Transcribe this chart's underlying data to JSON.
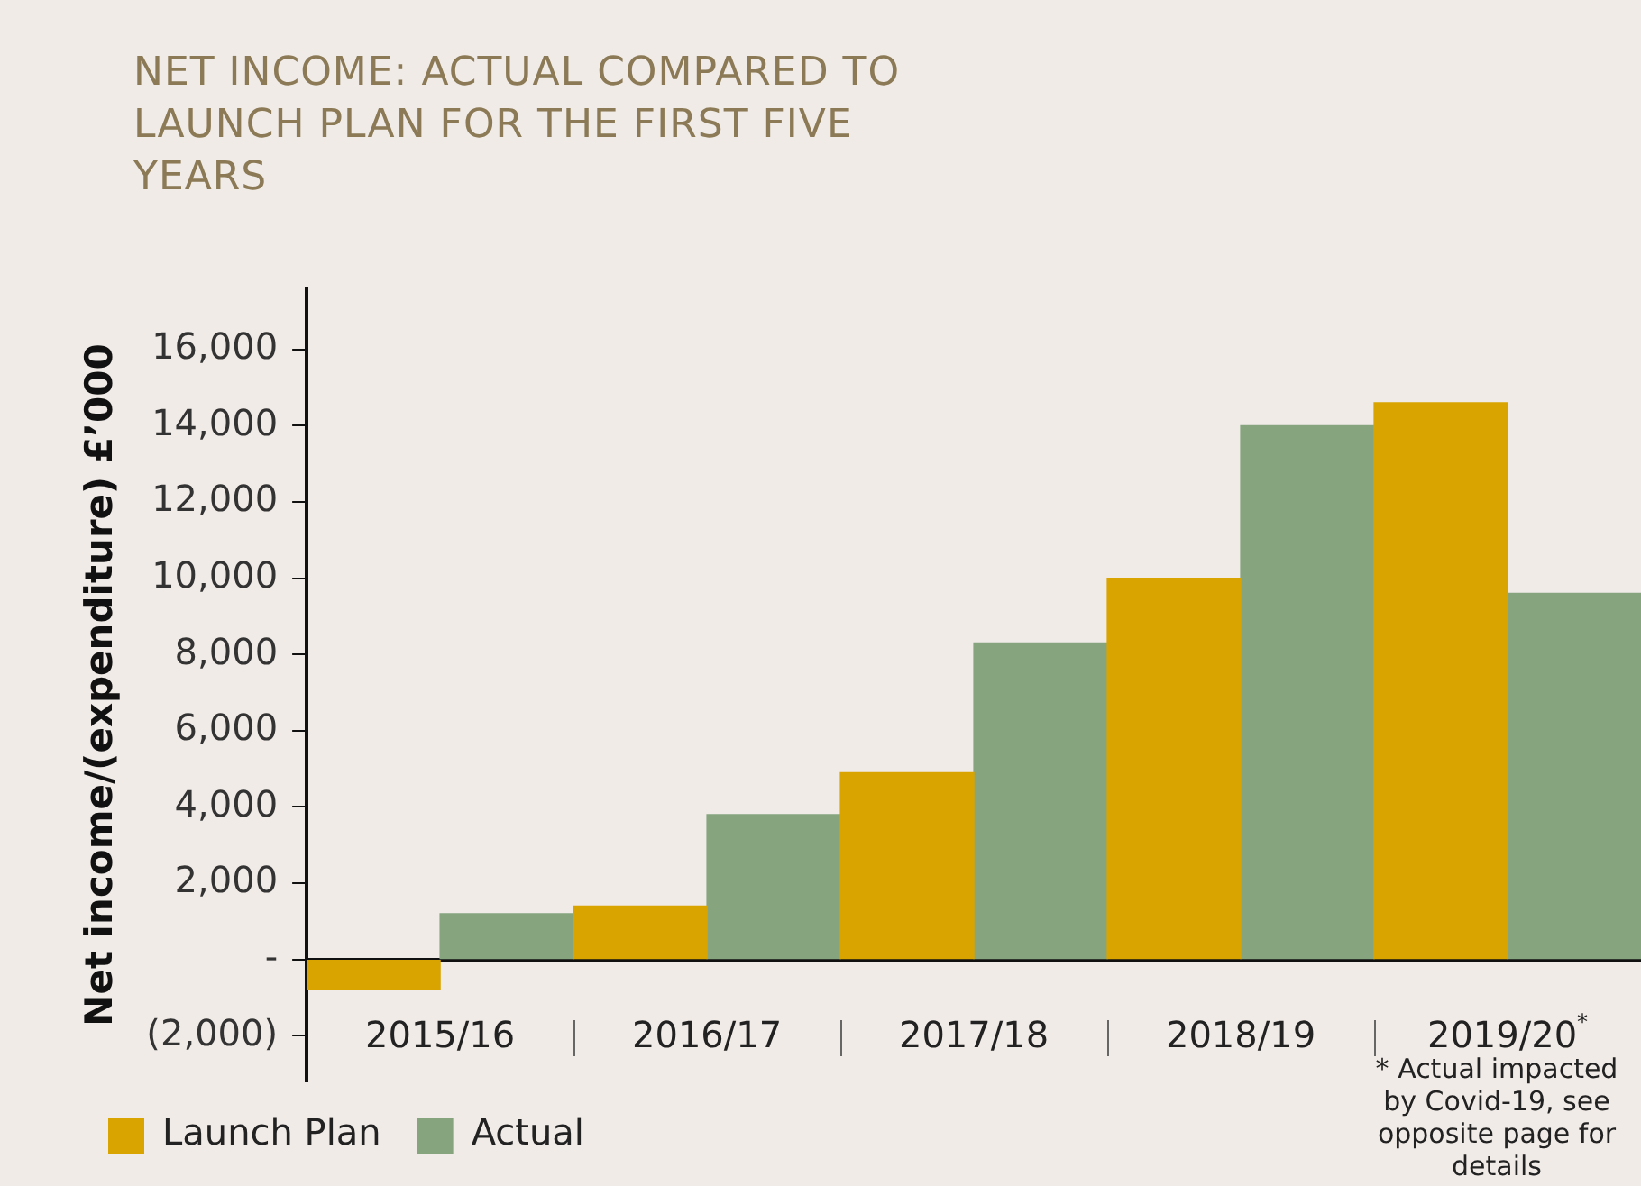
{
  "chart_data": {
    "type": "bar",
    "title": "NET INCOME: ACTUAL COMPARED TO LAUNCH PLAN FOR THE FIRST FIVE YEARS",
    "ylabel": "Net income/(expenditure) £’000",
    "categories": [
      "2015/16",
      "2016/17",
      "2017/18",
      "2018/19",
      "2019/20$^{*}$"
    ],
    "series": [
      {
        "name": "Launch Plan",
        "color": "#d9a400",
        "values": [
          -800,
          1400,
          4900,
          10000,
          14600
        ]
      },
      {
        "name": "Actual",
        "color": "#86a57f",
        "values": [
          1200,
          3800,
          8300,
          14000,
          9600
        ]
      }
    ],
    "ylim": [
      -3200,
      17600
    ],
    "yticks": [
      {
        "value": -2000,
        "label": "(2,000)"
      },
      {
        "value": 0,
        "label": "-"
      },
      {
        "value": 2000,
        "label": "2,000"
      },
      {
        "value": 4000,
        "label": "4,000"
      },
      {
        "value": 6000,
        "label": "6,000"
      },
      {
        "value": 8000,
        "label": "8,000"
      },
      {
        "value": 10000,
        "label": "10,000"
      },
      {
        "value": 12000,
        "label": "12,000"
      },
      {
        "value": 14000,
        "label": "14,000"
      },
      {
        "value": 16000,
        "label": "16,000"
      }
    ],
    "grid": false,
    "legend": "bottom left",
    "annotations": [
      "* Actual impacted by Covid-19, see opposite page for details"
    ]
  }
}
